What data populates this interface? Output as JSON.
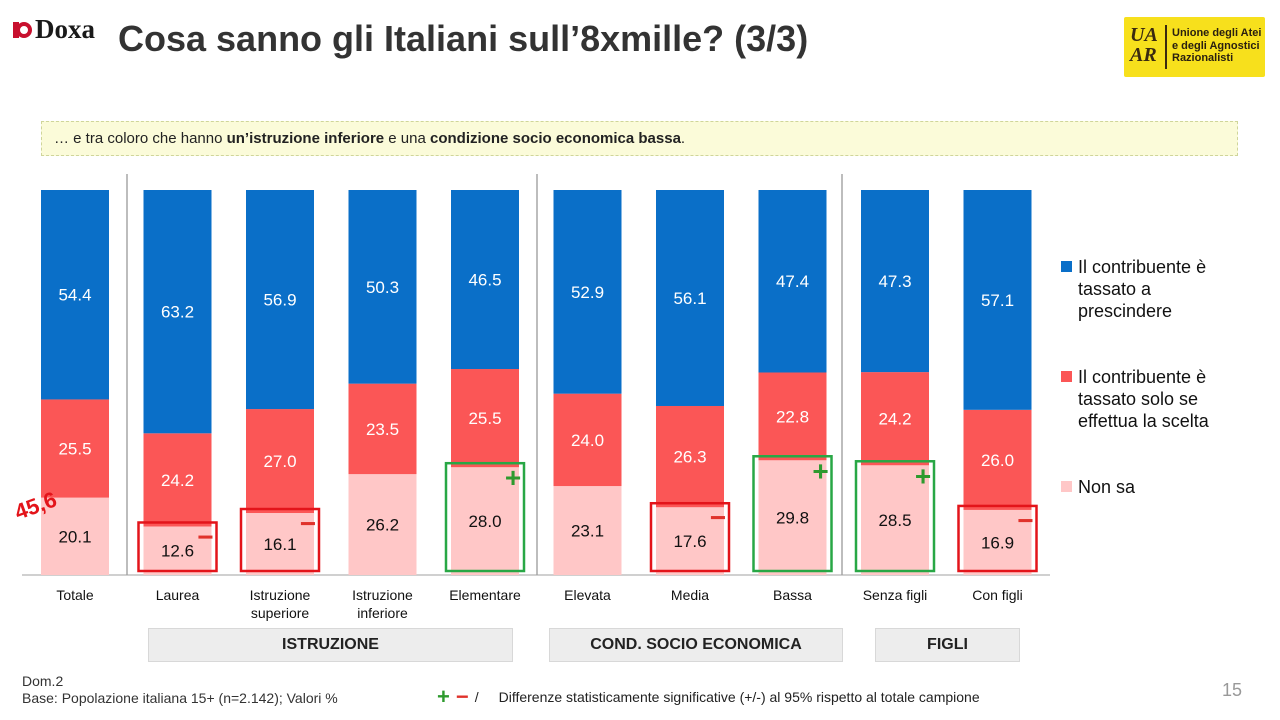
{
  "header": {
    "logo_left": "Doxa",
    "title": "Cosa sanno gli Italiani sull’8xmille? (3/3)",
    "logo_right_letters": [
      "UA",
      "AR"
    ],
    "logo_right_name": [
      "Unione degli Atei",
      "e degli Agnostici",
      "Razionalisti"
    ]
  },
  "banner": {
    "p1": "… e tra coloro che hanno ",
    "b1": "un’istruzione inferiore",
    "p2": " e una ",
    "b2": "condizione socio economica bassa",
    "p3": "."
  },
  "chart_data": {
    "type": "bar",
    "stacked": true,
    "percent_stacked": true,
    "categories": [
      "Totale",
      "Laurea",
      "Istruzione superiore",
      "Istruzione inferiore",
      "Elementare",
      "Elevata",
      "Media",
      "Bassa",
      "Senza figli",
      "Con figli"
    ],
    "series": [
      {
        "name": "Non sa",
        "color": "#ffc7c7",
        "values": [
          20.1,
          12.6,
          16.1,
          26.2,
          28.0,
          23.1,
          17.6,
          29.8,
          28.5,
          16.9
        ]
      },
      {
        "name": "Il contribuente è tassato solo se effettua la scelta",
        "color": "#fb5656",
        "values": [
          25.5,
          24.2,
          27.0,
          23.5,
          25.5,
          24.0,
          26.3,
          22.8,
          24.2,
          26.0
        ]
      },
      {
        "name": "Il contribuente è tassato a prescindere",
        "color": "#0a6fc8",
        "values": [
          54.4,
          63.2,
          56.9,
          50.3,
          46.5,
          52.9,
          56.1,
          47.4,
          47.3,
          57.1
        ]
      }
    ],
    "significance": [
      "",
      "-",
      "-",
      "",
      "+",
      "",
      "-",
      "+",
      "+",
      "-"
    ],
    "annotation": "45,6",
    "groups": [
      "ISTRUZIONE",
      "COND. SOCIO ECONOMICA",
      "FIGLI"
    ],
    "legend_position": "right",
    "label_colors": {
      "blue": "#ffffff",
      "red": "#ffffff",
      "pink": "#111111"
    },
    "significance_colors": {
      "plus": "#2e9a2e",
      "minus": "#e0322b"
    }
  },
  "legend": {
    "blue": "Il contribuente è tassato a prescindere",
    "red": "Il contribuente è tassato solo se effettua la scelta",
    "pink": "Non sa"
  },
  "footer": {
    "dom": "Dom.2",
    "base": "Base: Popolazione italiana 15+ (n=2.142); Valori %",
    "sig_sep": "/",
    "sig_text": "Differenze statisticamente significative (+/-) al 95% rispetto al totale campione",
    "page": "15"
  }
}
